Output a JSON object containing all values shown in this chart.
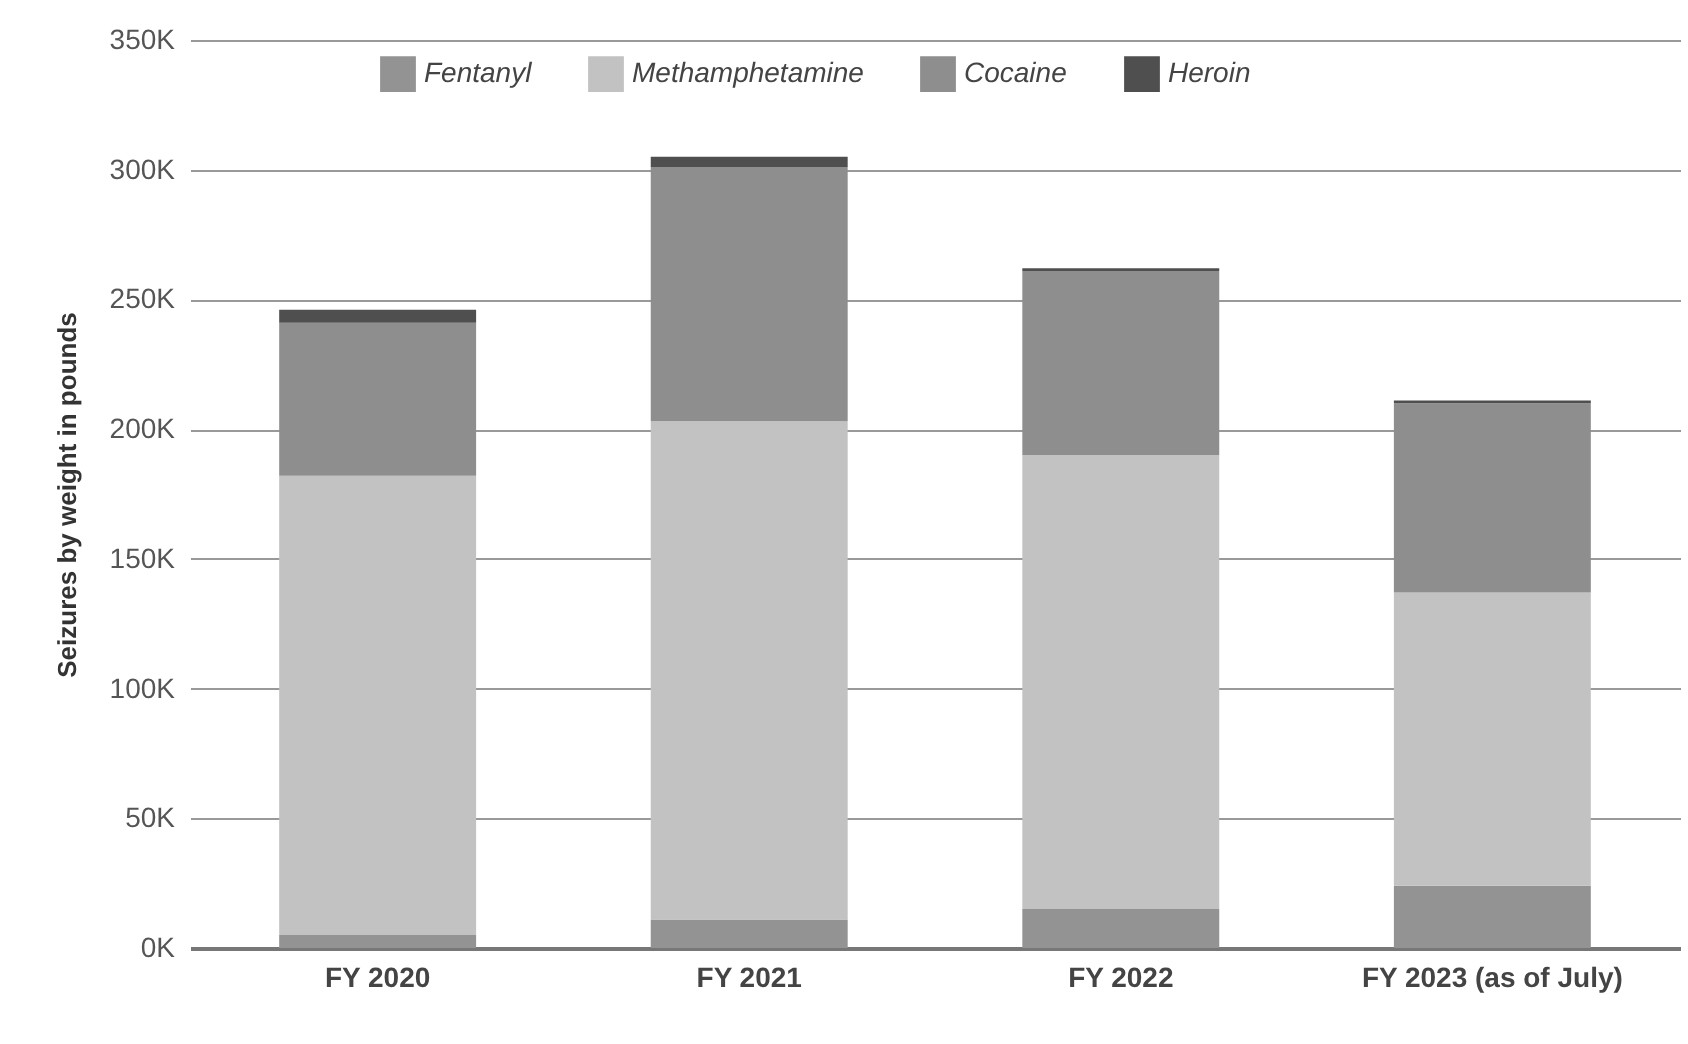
{
  "chart_data": {
    "type": "bar",
    "stacked": true,
    "ylabel": "Seizures by weight in pounds",
    "categories": [
      "FY 2020",
      "FY 2021",
      "FY 2022",
      "FY 2023\n(as of July)"
    ],
    "series": [
      {
        "name": "Fentanyl",
        "color": "#939393",
        "values": [
          5000,
          11000,
          15000,
          24000
        ]
      },
      {
        "name": "Methamphetamine",
        "color": "#c2c2c2",
        "values": [
          177000,
          192000,
          175000,
          113000
        ]
      },
      {
        "name": "Cocaine",
        "color": "#8e8e8e",
        "values": [
          59000,
          98000,
          71000,
          73000
        ]
      },
      {
        "name": "Heroin",
        "color": "#4f4f4f",
        "values": [
          5000,
          4000,
          1000,
          1000
        ]
      }
    ],
    "ylim": [
      0,
      350000
    ],
    "yticks": [
      {
        "value": 0,
        "label": "0K"
      },
      {
        "value": 50000,
        "label": "50K"
      },
      {
        "value": 100000,
        "label": "100K"
      },
      {
        "value": 150000,
        "label": "150K"
      },
      {
        "value": 200000,
        "label": "200K"
      },
      {
        "value": 250000,
        "label": "250K"
      },
      {
        "value": 300000,
        "label": "300K"
      },
      {
        "value": 350000,
        "label": "350K"
      }
    ],
    "grid": "y",
    "legend": "top"
  }
}
